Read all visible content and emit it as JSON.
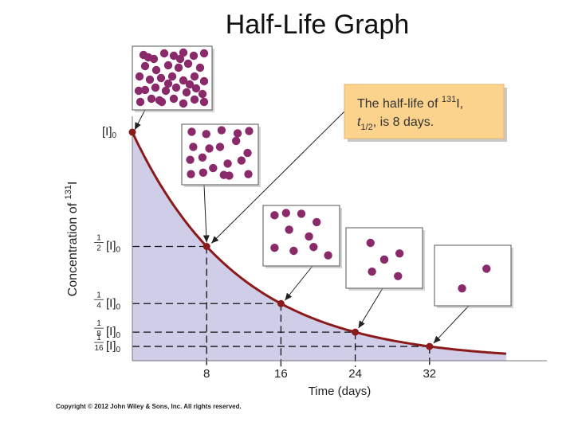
{
  "title": "Half-Life Graph",
  "copyright": "Copyright © 2012 John Wiley & Sons, Inc. All rights reserved.",
  "colors": {
    "curve": "#8b1a1a",
    "fill": "#cfcde8",
    "atom": "#8b2a6a",
    "callout_bg": "#fbd38d"
  },
  "callout": {
    "line1_prefix": "The half-life of ",
    "isotope_mass": "131",
    "line1_suffix": "I,",
    "symbol": "t",
    "symbol_sub": "1/2",
    "line2_suffix": ", is 8 days."
  },
  "chart_data": {
    "type": "line",
    "title": "",
    "xlabel": "Time (days)",
    "ylabel_prefix": "Concentration of ",
    "ylabel_isotope_mass": "131",
    "ylabel_suffix": "I",
    "x_ticks": [
      8,
      16,
      24,
      32
    ],
    "xlim": [
      0,
      40
    ],
    "ylim": [
      0,
      1.05
    ],
    "y_ticks": [
      {
        "value": 1,
        "numerator": "",
        "denominator": "",
        "label": "[I]",
        "sub": "0"
      },
      {
        "value": 0.5,
        "numerator": "1",
        "denominator": "2",
        "label": "[I]",
        "sub": "0"
      },
      {
        "value": 0.25,
        "numerator": "1",
        "denominator": "4",
        "label": "[I]",
        "sub": "0"
      },
      {
        "value": 0.125,
        "numerator": "1",
        "denominator": "8",
        "label": "[I]",
        "sub": "0"
      },
      {
        "value": 0.0625,
        "numerator": "1",
        "denominator": "16",
        "label": "[I]",
        "sub": "0"
      }
    ],
    "half_life_days": 8,
    "points": [
      {
        "x": 0,
        "y": 1
      },
      {
        "x": 8,
        "y": 0.5
      },
      {
        "x": 16,
        "y": 0.25
      },
      {
        "x": 24,
        "y": 0.125
      },
      {
        "x": 32,
        "y": 0.0625
      }
    ],
    "grid": false,
    "sample_atom_counts": [
      40,
      20,
      10,
      5,
      2
    ]
  }
}
